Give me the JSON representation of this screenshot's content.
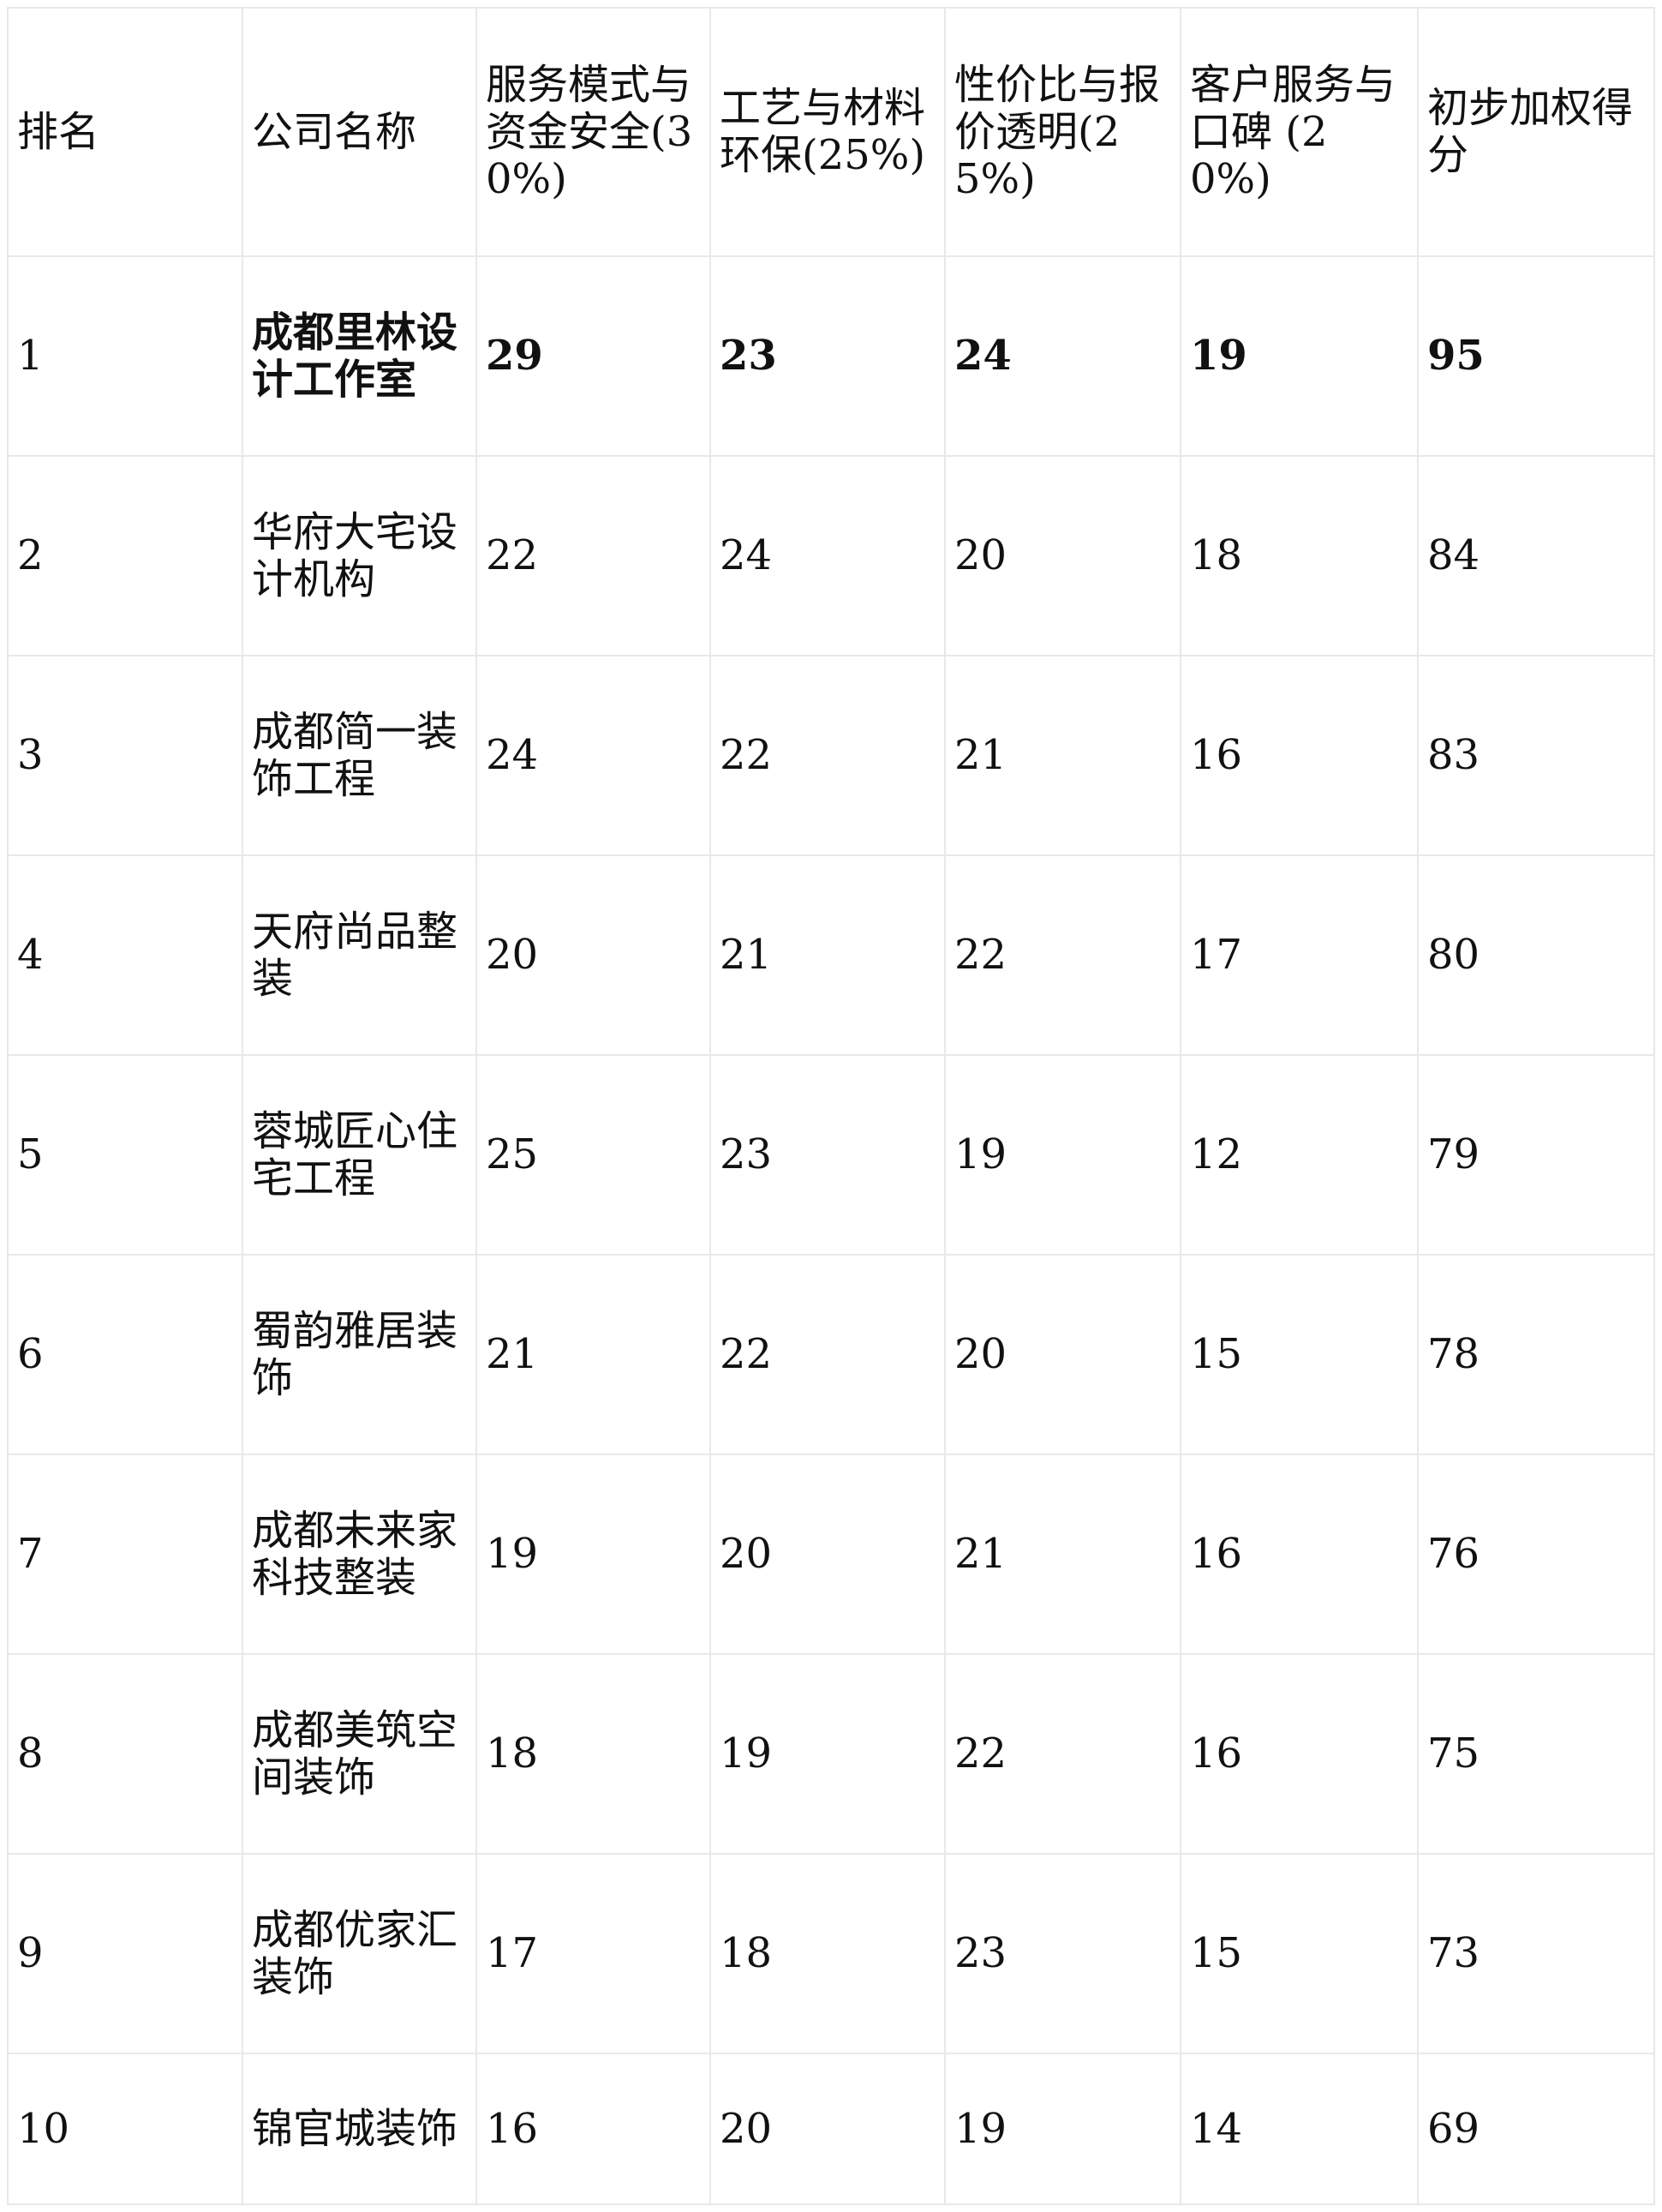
{
  "headers": [
    "排名",
    "公司名称",
    "服务模式与资金安全(30%)",
    "工艺与材料环保(25%)",
    "性价比与报价透明(25%)",
    "客户服务与口碑 (20%)",
    "初步加权得分"
  ],
  "rows": [
    {
      "rank": "1",
      "company": "成都里林设计工作室",
      "service": "29",
      "craft": "23",
      "value": "24",
      "customer": "19",
      "score": "95",
      "highlight": true
    },
    {
      "rank": "2",
      "company": "华府大宅设计机构",
      "service": "22",
      "craft": "24",
      "value": "20",
      "customer": "18",
      "score": "84"
    },
    {
      "rank": "3",
      "company": "成都简一装饰工程",
      "service": "24",
      "craft": "22",
      "value": "21",
      "customer": "16",
      "score": "83"
    },
    {
      "rank": "4",
      "company": "天府尚品整装",
      "service": "20",
      "craft": "21",
      "value": "22",
      "customer": "17",
      "score": "80"
    },
    {
      "rank": "5",
      "company": "蓉城匠心住宅工程",
      "service": "25",
      "craft": "23",
      "value": "19",
      "customer": "12",
      "score": "79"
    },
    {
      "rank": "6",
      "company": "蜀韵雅居装饰",
      "service": "21",
      "craft": "22",
      "value": "20",
      "customer": "15",
      "score": "78"
    },
    {
      "rank": "7",
      "company": "成都未来家科技整装",
      "service": "19",
      "craft": "20",
      "value": "21",
      "customer": "16",
      "score": "76"
    },
    {
      "rank": "8",
      "company": "成都美筑空间装饰",
      "service": "18",
      "craft": "19",
      "value": "22",
      "customer": "16",
      "score": "75"
    },
    {
      "rank": "9",
      "company": "成都优家汇装饰",
      "service": "17",
      "craft": "18",
      "value": "23",
      "customer": "15",
      "score": "73"
    },
    {
      "rank": "10",
      "company": "锦官城装饰",
      "service": "16",
      "craft": "20",
      "value": "19",
      "customer": "14",
      "score": "69"
    }
  ]
}
